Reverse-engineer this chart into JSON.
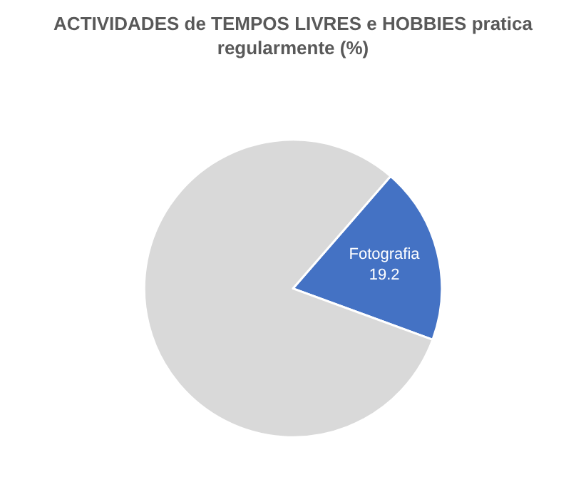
{
  "chart_data": {
    "type": "pie",
    "title": "ACTIVIDADES de TEMPOS LIVRES e HOBBIES pratica regularmente (%)",
    "categories": [
      "Fotografia",
      null
    ],
    "values": [
      19.2,
      80.8
    ],
    "value_labels": [
      "19.2",
      null
    ],
    "colors": [
      "#4472c4",
      "#d9d9d9"
    ],
    "legend": false
  }
}
